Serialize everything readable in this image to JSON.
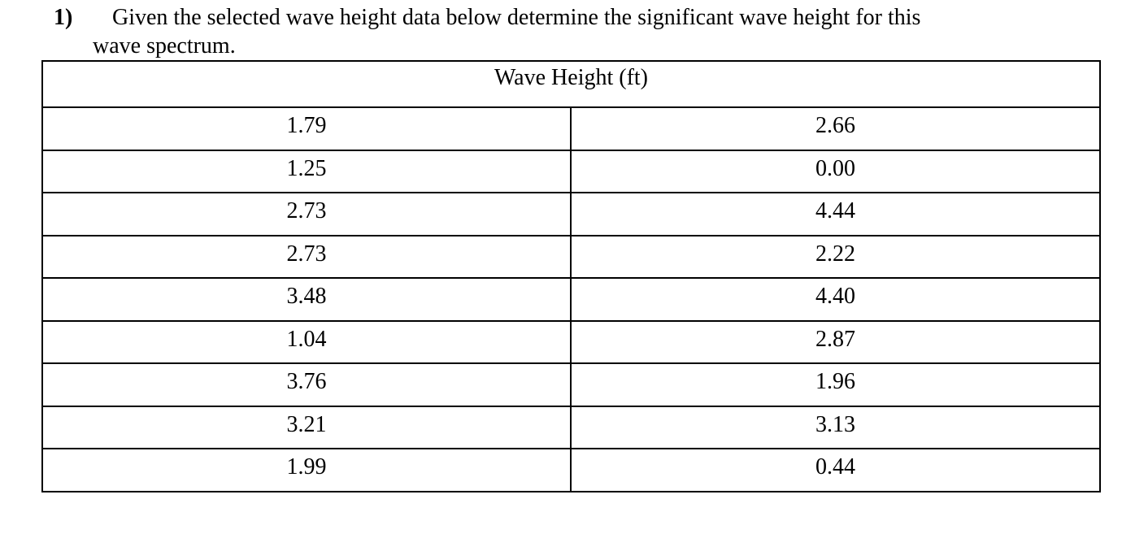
{
  "question": {
    "number": "1)",
    "text_line1": "Given the selected wave height data below determine the significant wave height for this",
    "text_line2": "wave spectrum."
  },
  "table": {
    "header": "Wave Height (ft)",
    "rows": [
      [
        "1.79",
        "2.66"
      ],
      [
        "1.25",
        "0.00"
      ],
      [
        "2.73",
        "4.44"
      ],
      [
        "2.73",
        "2.22"
      ],
      [
        "3.48",
        "4.40"
      ],
      [
        "1.04",
        "2.87"
      ],
      [
        "3.76",
        "1.96"
      ],
      [
        "3.21",
        "3.13"
      ],
      [
        "1.99",
        "0.44"
      ]
    ]
  }
}
